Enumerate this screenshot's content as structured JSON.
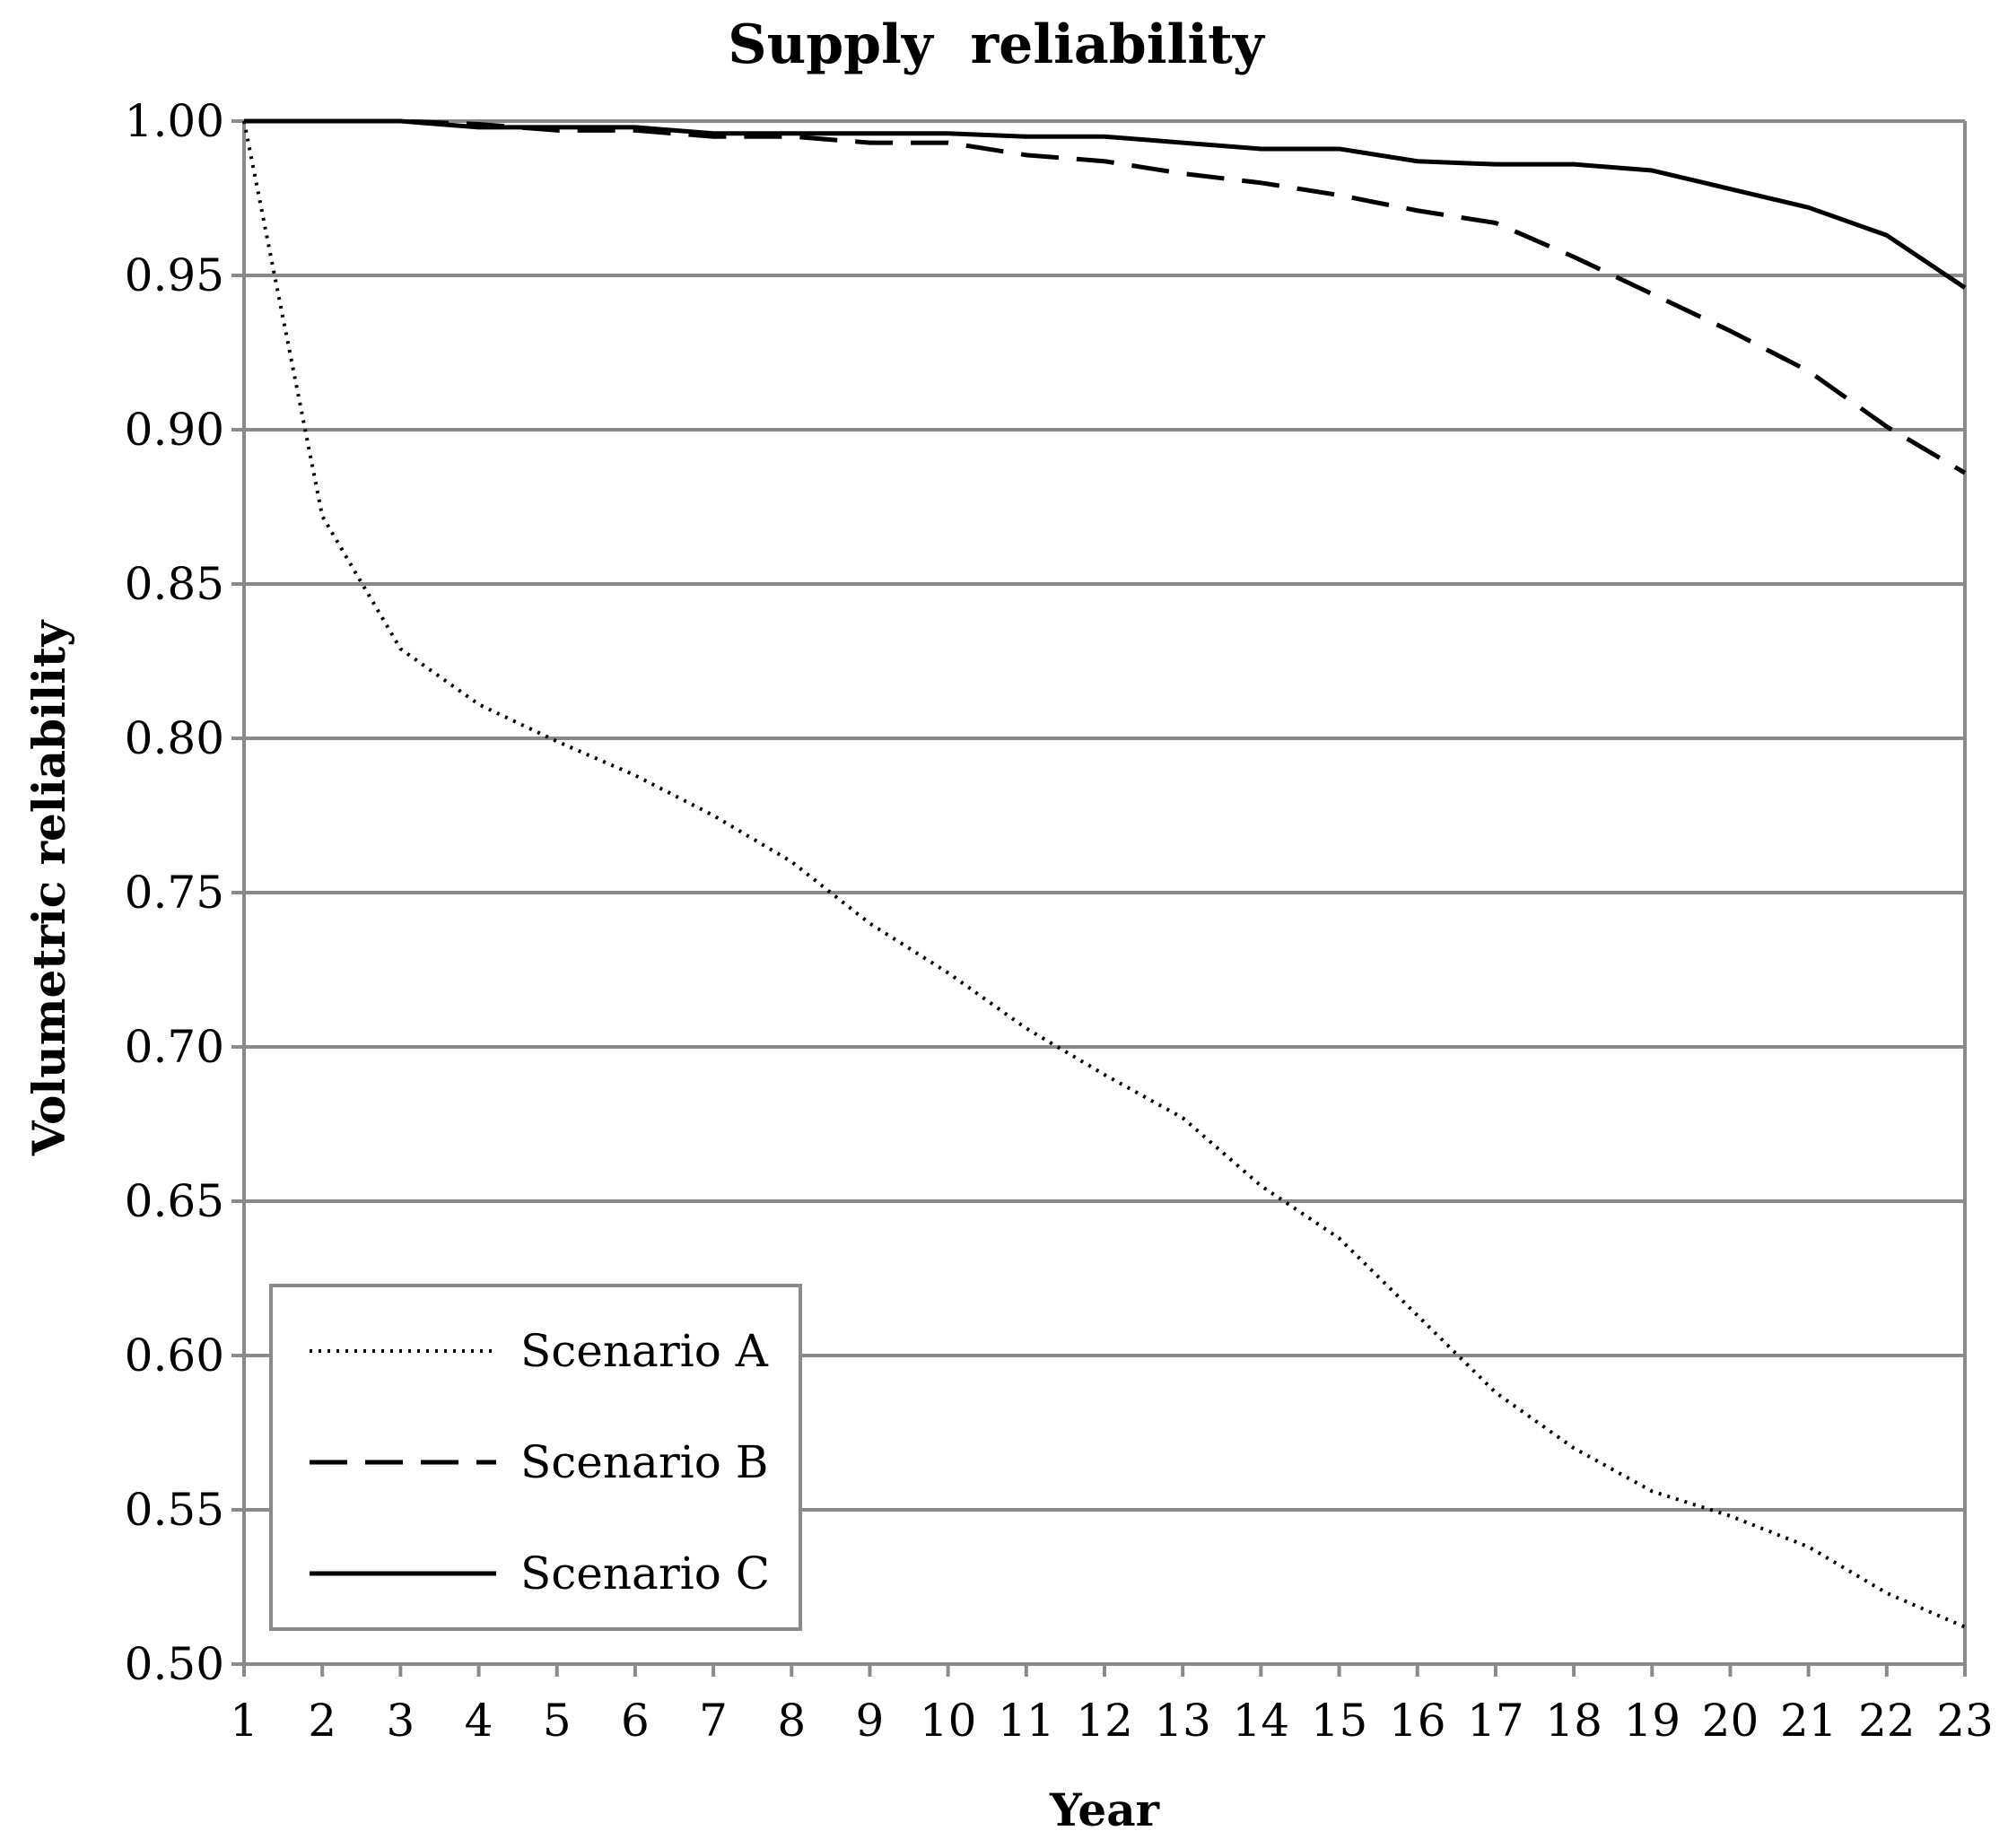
{
  "chart_data": {
    "type": "line",
    "title": "Supply  reliability",
    "xlabel": "Year",
    "ylabel": "Volumetric reliability",
    "x": [
      1,
      2,
      3,
      4,
      5,
      6,
      7,
      8,
      9,
      10,
      11,
      12,
      13,
      14,
      15,
      16,
      17,
      18,
      19,
      20,
      21,
      22,
      23
    ],
    "x_tick_labels": [
      "1",
      "2",
      "3",
      "4",
      "5",
      "6",
      "7",
      "8",
      "9",
      "10",
      "11",
      "12",
      "13",
      "14",
      "15",
      "16",
      "17",
      "18",
      "19",
      "20",
      "21",
      "22",
      "23"
    ],
    "xlim": [
      1,
      23
    ],
    "ylim": [
      0.5,
      1.0
    ],
    "y_ticks": [
      0.5,
      0.55,
      0.6,
      0.65,
      0.7,
      0.75,
      0.8,
      0.85,
      0.9,
      0.95,
      1.0
    ],
    "y_tick_labels": [
      "0.50",
      "0.55",
      "0.60",
      "0.65",
      "0.70",
      "0.75",
      "0.80",
      "0.85",
      "0.90",
      "0.95",
      "1.00"
    ],
    "grid": true,
    "legend_position": "bottom-left",
    "series": [
      {
        "name": "Scenario A",
        "style": "dotted",
        "values": [
          1.0,
          0.872,
          0.829,
          0.811,
          0.799,
          0.788,
          0.775,
          0.76,
          0.74,
          0.724,
          0.706,
          0.691,
          0.677,
          0.655,
          0.638,
          0.613,
          0.588,
          0.57,
          0.556,
          0.548,
          0.538,
          0.523,
          0.512
        ]
      },
      {
        "name": "Scenario B",
        "style": "dashed",
        "values": [
          1.0,
          1.0,
          1.0,
          0.999,
          0.997,
          0.997,
          0.995,
          0.995,
          0.993,
          0.993,
          0.989,
          0.987,
          0.983,
          0.98,
          0.976,
          0.971,
          0.967,
          0.956,
          0.944,
          0.932,
          0.919,
          0.901,
          0.886
        ]
      },
      {
        "name": "Scenario C",
        "style": "solid",
        "values": [
          1.0,
          1.0,
          1.0,
          0.998,
          0.998,
          0.998,
          0.996,
          0.996,
          0.996,
          0.996,
          0.995,
          0.995,
          0.993,
          0.991,
          0.991,
          0.987,
          0.986,
          0.986,
          0.984,
          0.978,
          0.972,
          0.963,
          0.946
        ]
      }
    ]
  }
}
